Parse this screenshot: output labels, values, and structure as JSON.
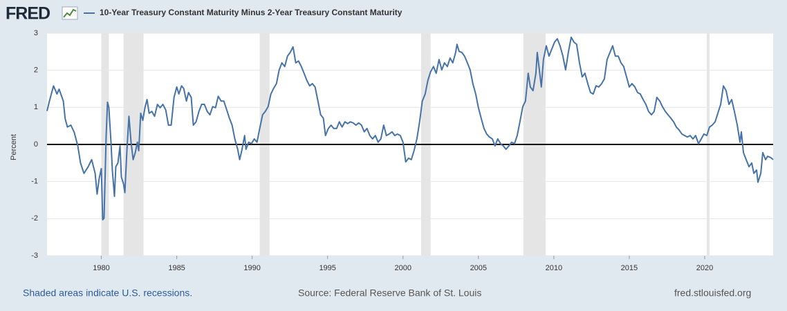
{
  "logo": "FRED",
  "chart_data": {
    "type": "line",
    "series": [
      {
        "name": "10-Year Treasury Constant Maturity Minus 2-Year Treasury Constant Maturity",
        "color": "#4572a7",
        "values": [
          0.9,
          1.17,
          1.58,
          1.36,
          1.49,
          1.17,
          0.7,
          0.47,
          0.52,
          0.33,
          -0.04,
          -0.5,
          -0.78,
          -0.6,
          -0.41,
          -0.78,
          -1.34,
          -0.91,
          -0.65,
          -2.03,
          -1.99,
          0.24,
          1.14,
          0.99,
          0.06,
          -0.69,
          -1.4,
          -0.6,
          -0.5,
          -0.04,
          -0.88,
          -1.06,
          -1.3,
          -0.13,
          0.76,
          0.06,
          -0.41,
          -0.22,
          0.06,
          -0.17,
          0.84,
          0.65,
          0.99,
          1.21,
          0.84,
          0.89,
          0.76,
          1.08,
          0.99,
          1.08,
          0.93,
          0.52,
          0.52,
          1.27,
          1.55,
          1.36,
          1.58,
          1.51,
          1.17,
          1.4,
          1.27,
          0.52,
          0.61,
          0.89,
          1.08,
          1.08,
          0.89,
          0.8,
          1.02,
          0.99,
          1.3,
          1.17,
          1.17,
          0.95,
          0.71,
          0.52,
          0.15,
          -0.13,
          -0.41,
          -0.17,
          0.24,
          -0.13,
          0.06,
          0.02,
          0.15,
          0.06,
          0.43,
          0.8,
          0.89,
          1.02,
          1.36,
          1.51,
          1.64,
          2.01,
          2.2,
          2.1,
          2.38,
          2.48,
          2.63,
          2.2,
          2.25,
          2.1,
          1.92,
          1.73,
          1.58,
          1.64,
          1.55,
          1.17,
          0.8,
          0.71,
          0.24,
          0.43,
          0.52,
          0.43,
          0.43,
          0.61,
          0.47,
          0.61,
          0.56,
          0.61,
          0.58,
          0.52,
          0.58,
          0.52,
          0.34,
          0.43,
          0.24,
          0.15,
          0.24,
          0.06,
          0.15,
          0.52,
          0.24,
          0.28,
          0.34,
          0.24,
          0.28,
          0.24,
          0.06,
          -0.47,
          -0.37,
          -0.41,
          -0.17,
          0.15,
          0.61,
          1.17,
          1.36,
          1.73,
          1.96,
          2.1,
          1.92,
          2.29,
          2.01,
          2.2,
          2.1,
          2.33,
          2.2,
          2.48,
          2.7,
          2.51,
          2.48,
          2.38,
          2.2,
          2.01,
          1.64,
          1.36,
          0.99,
          0.71,
          0.43,
          0.28,
          0.2,
          0.15,
          -0.04,
          0.15,
          0.02,
          -0.04,
          -0.13,
          -0.04,
          0.06,
          0.02,
          0.24,
          0.61,
          1.02,
          1.17,
          1.92,
          1.55,
          1.45,
          1.92,
          2.48,
          2.01,
          1.55,
          2.29,
          2.66,
          2.38,
          2.57,
          2.76,
          2.85,
          2.66,
          2.38,
          2.01,
          2.48,
          2.89,
          2.76,
          2.7,
          2.2,
          1.82,
          1.92,
          1.64,
          1.4,
          1.36,
          1.58,
          1.55,
          1.64,
          1.77,
          2.29,
          2.48,
          2.66,
          2.38,
          2.38,
          2.2,
          2.1,
          1.82,
          1.55,
          1.64,
          1.55,
          1.4,
          1.36,
          1.21,
          1.08,
          0.89,
          0.8,
          0.89,
          1.27,
          1.17,
          1.02,
          0.89,
          0.8,
          0.71,
          0.61,
          0.47,
          0.39,
          0.28,
          0.24,
          0.2,
          0.24,
          0.15,
          0.24,
          0.02,
          0.15,
          0.28,
          0.24,
          0.47,
          0.52,
          0.61,
          0.84,
          1.08,
          1.58,
          1.45,
          1.08,
          1.21,
          0.89,
          0.52,
          0.06,
          0.34,
          -0.22,
          -0.41,
          -0.6,
          -0.5,
          -0.78,
          -0.69,
          -1.02,
          -0.78,
          -0.22,
          -0.41,
          -0.32,
          -0.35,
          -0.41
        ]
      }
    ],
    "x": [
      1976.4,
      1976.56,
      1976.83,
      1977.06,
      1977.2,
      1977.48,
      1977.6,
      1977.75,
      1977.98,
      1978.2,
      1978.44,
      1978.62,
      1978.85,
      1979.13,
      1979.36,
      1979.59,
      1979.72,
      1979.86,
      1980.0,
      1980.09,
      1980.18,
      1980.32,
      1980.41,
      1980.5,
      1980.64,
      1980.73,
      1980.87,
      1980.96,
      1981.1,
      1981.24,
      1981.33,
      1981.47,
      1981.56,
      1981.7,
      1981.83,
      1981.97,
      1982.11,
      1982.25,
      1982.39,
      1982.48,
      1982.61,
      1982.75,
      1982.89,
      1983.03,
      1983.17,
      1983.35,
      1983.53,
      1983.72,
      1983.9,
      1984.08,
      1984.27,
      1984.45,
      1984.63,
      1984.82,
      1985.0,
      1985.14,
      1985.32,
      1985.46,
      1985.64,
      1985.78,
      1985.96,
      1986.1,
      1986.28,
      1986.47,
      1986.65,
      1986.83,
      1987.02,
      1987.2,
      1987.38,
      1987.57,
      1987.75,
      1987.94,
      1988.12,
      1988.3,
      1988.49,
      1988.67,
      1988.85,
      1989.04,
      1989.17,
      1989.31,
      1989.5,
      1989.59,
      1989.77,
      1989.95,
      1990.14,
      1990.32,
      1990.5,
      1990.69,
      1990.87,
      1991.06,
      1991.24,
      1991.42,
      1991.61,
      1991.79,
      1991.97,
      1992.16,
      1992.34,
      1992.52,
      1992.71,
      1992.89,
      1993.07,
      1993.26,
      1993.44,
      1993.62,
      1993.81,
      1993.99,
      1994.17,
      1994.36,
      1994.54,
      1994.72,
      1994.86,
      1995.05,
      1995.23,
      1995.41,
      1995.6,
      1995.78,
      1995.96,
      1996.15,
      1996.33,
      1996.51,
      1996.7,
      1996.88,
      1997.06,
      1997.25,
      1997.43,
      1997.61,
      1997.8,
      1997.98,
      1998.17,
      1998.35,
      1998.53,
      1998.72,
      1998.9,
      1999.08,
      1999.27,
      1999.45,
      1999.63,
      1999.82,
      2000.0,
      2000.18,
      2000.37,
      2000.55,
      2000.73,
      2000.92,
      2001.1,
      2001.28,
      2001.47,
      2001.65,
      2001.83,
      2002.02,
      2002.2,
      2002.39,
      2002.57,
      2002.75,
      2002.94,
      2003.12,
      2003.3,
      2003.49,
      2003.58,
      2003.72,
      2003.9,
      2004.08,
      2004.27,
      2004.45,
      2004.63,
      2004.82,
      2005.0,
      2005.18,
      2005.37,
      2005.55,
      2005.73,
      2005.92,
      2006.1,
      2006.28,
      2006.47,
      2006.65,
      2006.83,
      2007.02,
      2007.2,
      2007.39,
      2007.57,
      2007.75,
      2007.94,
      2008.12,
      2008.3,
      2008.44,
      2008.62,
      2008.81,
      2008.9,
      2009.04,
      2009.17,
      2009.31,
      2009.5,
      2009.68,
      2009.86,
      2010.05,
      2010.23,
      2010.41,
      2010.6,
      2010.78,
      2010.96,
      2011.15,
      2011.33,
      2011.51,
      2011.7,
      2011.88,
      2012.06,
      2012.25,
      2012.43,
      2012.61,
      2012.8,
      2012.98,
      2013.17,
      2013.35,
      2013.53,
      2013.72,
      2013.9,
      2014.08,
      2014.27,
      2014.45,
      2014.63,
      2014.82,
      2015.0,
      2015.18,
      2015.37,
      2015.55,
      2015.73,
      2015.92,
      2016.1,
      2016.28,
      2016.47,
      2016.65,
      2016.83,
      2017.02,
      2017.2,
      2017.39,
      2017.57,
      2017.75,
      2017.94,
      2018.12,
      2018.3,
      2018.49,
      2018.67,
      2018.85,
      2019.04,
      2019.22,
      2019.4,
      2019.59,
      2019.77,
      2019.95,
      2020.14,
      2020.32,
      2020.5,
      2020.69,
      2020.87,
      2021.06,
      2021.24,
      2021.42,
      2021.61,
      2021.79,
      2021.97,
      2022.16,
      2022.34,
      2022.43,
      2022.57,
      2022.75,
      2022.94,
      2023.12,
      2023.26,
      2023.44,
      2023.53,
      2023.72,
      2023.85,
      2024.04,
      2024.17,
      2024.36,
      2024.54
    ],
    "xlim": [
      1976.4,
      2024.54
    ],
    "xticks": [
      1980,
      1985,
      1990,
      1995,
      2000,
      2005,
      2010,
      2015,
      2020
    ],
    "ylim": [
      -3,
      3
    ],
    "yticks": [
      -3,
      -2,
      -1,
      0,
      1,
      2,
      3
    ],
    "ylabel": "Percent",
    "grid": true,
    "zero_line": 0,
    "recessions": [
      [
        1980.0,
        1980.5
      ],
      [
        1981.47,
        1982.8
      ],
      [
        1990.5,
        1991.15
      ],
      [
        2001.2,
        2001.83
      ],
      [
        2007.98,
        2009.45
      ],
      [
        2020.14,
        2020.32
      ]
    ],
    "recession_color": "#e5e5e5",
    "note": "Shaded areas indicate U.S. recessions.",
    "source": "Source: Federal Reserve Bank of St. Louis",
    "url": "fred.stlouisfed.org"
  }
}
